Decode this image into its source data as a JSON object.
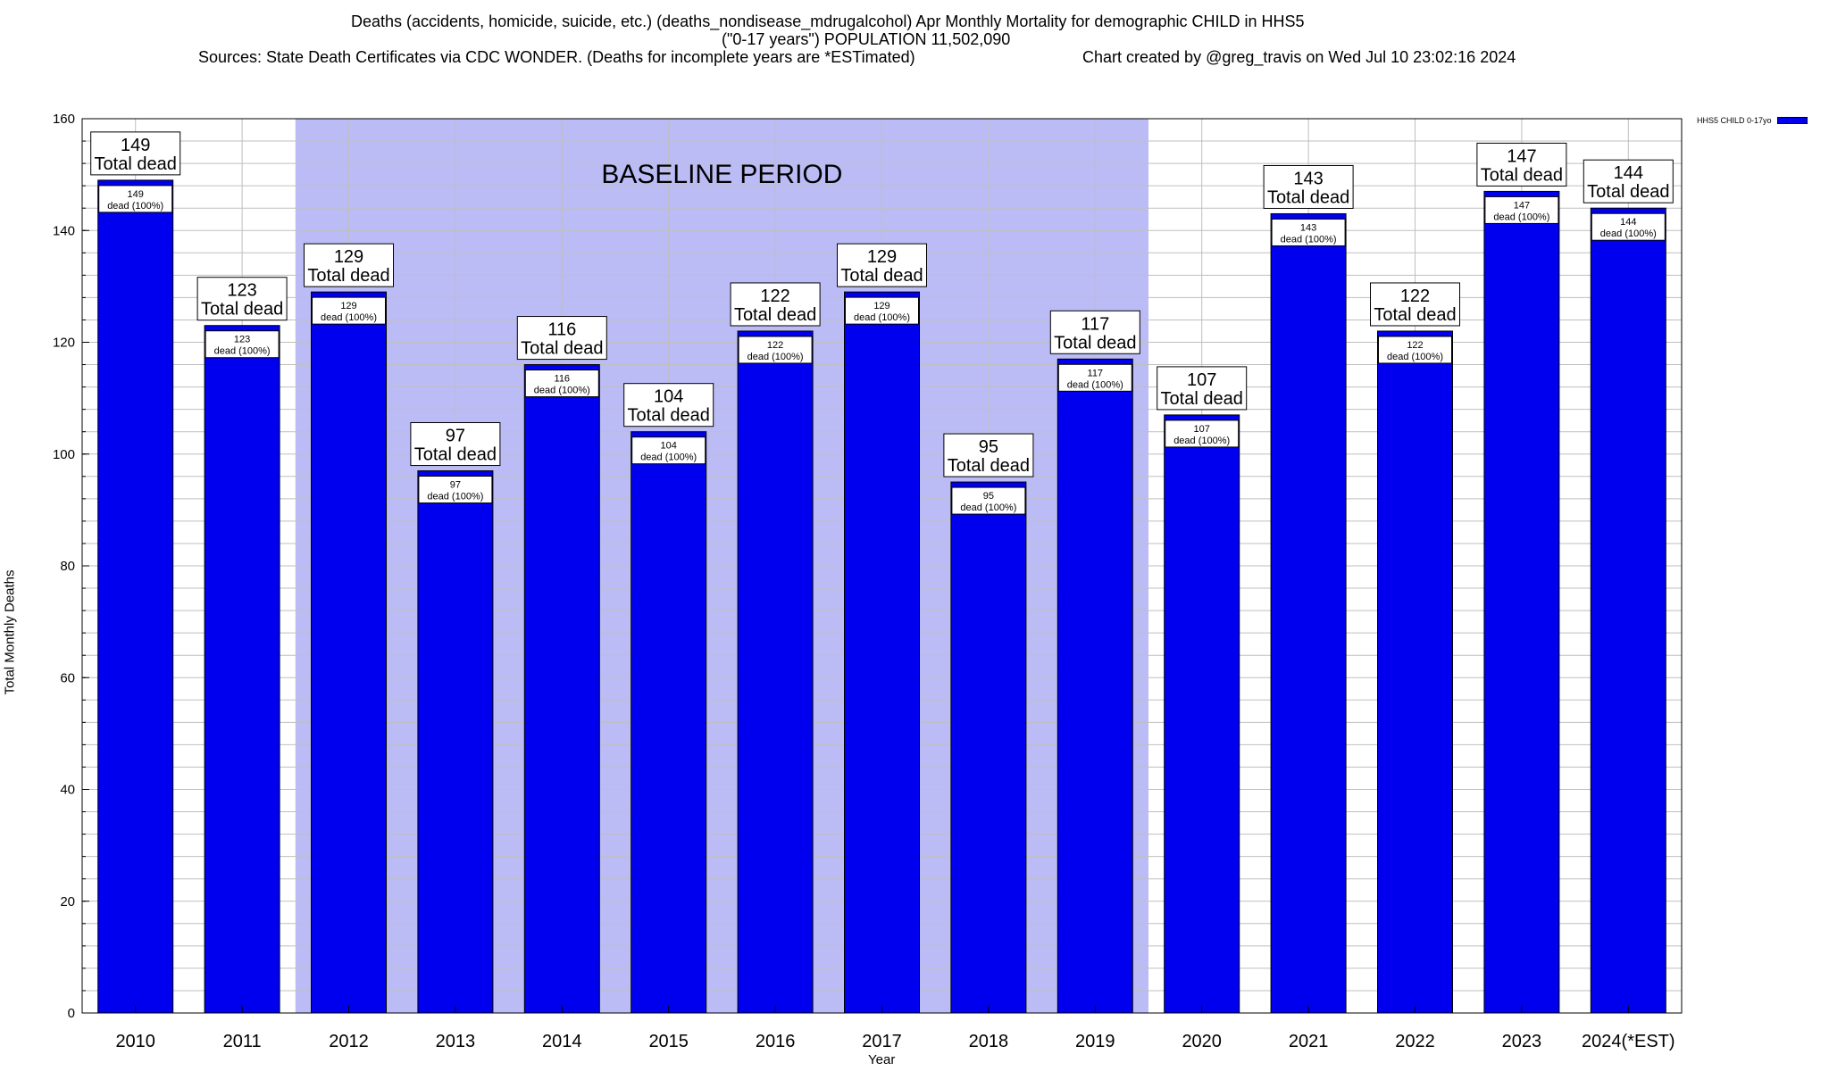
{
  "header": {
    "title_line1": "Deaths (accidents, homicide, suicide, etc.) (deaths_nondisease_mdrugalcohol) Apr Monthly Mortality for demographic CHILD in HHS5",
    "title_line2": "(\"0-17 years\") POPULATION 11,502,090",
    "sources": "Sources: State Death Certificates via CDC WONDER. (Deaths for incomplete years are *ESTimated)",
    "credit": "Chart created by @greg_travis on Wed Jul 10 23:02:16 2024"
  },
  "chart_data": {
    "type": "bar",
    "categories": [
      "2010",
      "2011",
      "2012",
      "2013",
      "2014",
      "2015",
      "2016",
      "2017",
      "2018",
      "2019",
      "2020",
      "2021",
      "2022",
      "2023",
      "2024(*EST)"
    ],
    "series": [
      {
        "name": "HHS5 CHILD 0-17yo",
        "values": [
          149,
          123,
          129,
          97,
          116,
          104,
          122,
          129,
          95,
          117,
          107,
          143,
          122,
          147,
          144
        ]
      }
    ],
    "xlabel": "Year",
    "ylabel": "Total Monthly Deaths",
    "ylim": [
      0,
      160
    ],
    "yticks": [
      0,
      20,
      40,
      60,
      80,
      100,
      120,
      140,
      160
    ],
    "minor_grid_step": 4,
    "grid": true,
    "legend_position": "top-right outside",
    "bar_label_text": "Total dead",
    "bar_inner_label_text": "dead (100%)",
    "baseline_period": {
      "label": "BASELINE PERIOD",
      "from": "2012",
      "to": "2019"
    },
    "colors": {
      "bar": "#0000ee",
      "baseline_shade": "#bbbcf6",
      "grid": "#bfbfbf"
    }
  }
}
